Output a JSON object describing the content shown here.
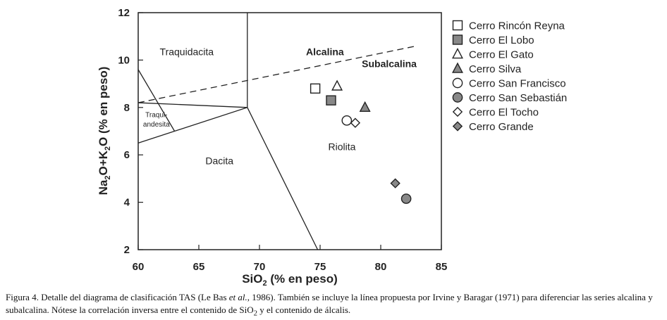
{
  "chart_data": {
    "type": "scatter",
    "xlabel_main": "SiO",
    "xlabel_sub": "2",
    "xlabel_rest": " (% en peso)",
    "ylabel_parts": [
      {
        "t": "Na",
        "sub": false
      },
      {
        "t": "2",
        "sub": true
      },
      {
        "t": "O+K",
        "sub": false
      },
      {
        "t": "2",
        "sub": true
      },
      {
        "t": "O (% en peso)",
        "sub": false
      }
    ],
    "xlim": [
      60,
      85
    ],
    "ylim": [
      2,
      12
    ],
    "xticks": [
      "60",
      "65",
      "70",
      "75",
      "80",
      "85"
    ],
    "yticks": [
      "2",
      "4",
      "6",
      "8",
      "10",
      "12"
    ],
    "boundaries": [
      {
        "name": "tas-boundary",
        "points": [
          [
            60,
            6.5
          ],
          [
            69,
            8
          ],
          [
            74.8,
            2
          ]
        ]
      },
      {
        "name": "tas-boundary",
        "points": [
          [
            69,
            8
          ],
          [
            69,
            12
          ]
        ]
      },
      {
        "name": "tas-boundary",
        "points": [
          [
            60,
            9.6
          ],
          [
            63,
            7
          ]
        ]
      },
      {
        "name": "tas-boundary",
        "points": [
          [
            60,
            8.2
          ],
          [
            69,
            8
          ]
        ]
      }
    ],
    "dashed_line": {
      "name": "irvine-baragar-line",
      "points": [
        [
          60,
          8.2
        ],
        [
          83,
          10.6
        ]
      ]
    },
    "region_labels": [
      {
        "text": "Traquidacita",
        "x": 64,
        "y": 10.2,
        "small": false
      },
      {
        "text": "Traqui-",
        "x": 61.5,
        "y": 7.6,
        "small": true
      },
      {
        "text": "andesita",
        "x": 61.5,
        "y": 7.2,
        "small": true
      },
      {
        "text": "Dacita",
        "x": 66.7,
        "y": 5.6,
        "small": false
      },
      {
        "text": "Riolita",
        "x": 76.8,
        "y": 6.2,
        "small": false
      }
    ],
    "series_labels": [
      {
        "text": "Alcalina",
        "x": 75.4,
        "y": 10.2
      },
      {
        "text": "Subalcalina",
        "x": 80.7,
        "y": 9.7
      }
    ],
    "series": [
      {
        "name": "Cerro Rincón Reyna",
        "marker": "square",
        "fill": "#ffffff",
        "points": [
          [
            74.6,
            8.8
          ]
        ]
      },
      {
        "name": "Cerro El Lobo",
        "marker": "square",
        "fill": "#888888",
        "points": [
          [
            75.9,
            8.3
          ]
        ]
      },
      {
        "name": "Cerro El Gato",
        "marker": "triangle",
        "fill": "#ffffff",
        "points": [
          [
            76.4,
            8.9
          ]
        ]
      },
      {
        "name": "Cerro Silva",
        "marker": "triangle",
        "fill": "#888888",
        "points": [
          [
            78.7,
            8.0
          ]
        ]
      },
      {
        "name": "Cerro San Francisco",
        "marker": "circle",
        "fill": "#ffffff",
        "points": [
          [
            77.2,
            7.45
          ]
        ]
      },
      {
        "name": "Cerro San Sebastián",
        "marker": "circle",
        "fill": "#888888",
        "points": [
          [
            82.1,
            4.15
          ]
        ]
      },
      {
        "name": "Cerro El Tocho",
        "marker": "diamond",
        "fill": "#ffffff",
        "points": [
          [
            77.9,
            7.35
          ]
        ]
      },
      {
        "name": "Cerro Grande",
        "marker": "diamond",
        "fill": "#888888",
        "points": [
          [
            81.2,
            4.8
          ]
        ]
      }
    ],
    "legend_position": "right"
  },
  "caption": {
    "p1": "Figura 4. Detalle del diagrama de clasificación TAS (Le Bas ",
    "p1_italic": "et al.",
    "p2": ", 1986). También se incluye la línea propuesta por Irvine y Baragar (1971) para diferenciar las series alcalina y subalcalina. Nótese la correlación inversa entre el contenido de SiO",
    "p2_sub": "2",
    "p3": " y el contenido de álcalis."
  }
}
